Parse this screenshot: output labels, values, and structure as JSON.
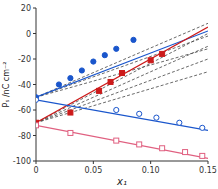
{
  "chart_data": {
    "type": "scatter",
    "xlabel": "x₁",
    "ylabel": "Pₛ /nC cm⁻²",
    "xlim": [
      0,
      0.15
    ],
    "ylim": [
      -100,
      20
    ],
    "xticks": [
      0,
      0.05,
      {
        "value": 0.1,
        "label": "0.10"
      },
      0.15
    ],
    "yticks": [
      20,
      0,
      -20,
      -40,
      -60,
      -80,
      -100
    ],
    "grid": false,
    "series": [
      {
        "type": "line",
        "line_style": "dashed",
        "color": "#444444",
        "x": [
          0.0,
          0.15
        ],
        "values": [
          -50,
          -12
        ]
      },
      {
        "type": "line",
        "line_style": "dashed",
        "color": "#444444",
        "x": [
          0.0,
          0.15
        ],
        "values": [
          -50,
          -2
        ]
      },
      {
        "type": "line",
        "line_style": "dashed",
        "color": "#444444",
        "x": [
          0.0,
          0.15
        ],
        "values": [
          -50,
          8
        ]
      },
      {
        "type": "line",
        "line_style": "dashed",
        "color": "#444444",
        "x": [
          0.0,
          0.15
        ],
        "values": [
          -70,
          -30
        ]
      },
      {
        "type": "line",
        "line_style": "dashed",
        "color": "#444444",
        "x": [
          0.0,
          0.15
        ],
        "values": [
          -70,
          -20
        ]
      },
      {
        "type": "line",
        "line_style": "dashed",
        "color": "#444444",
        "x": [
          0.0,
          0.15
        ],
        "values": [
          -70,
          -10
        ]
      },
      {
        "type": "line",
        "line_style": "dashed",
        "color": "#444444",
        "x": [
          0.0,
          0.15
        ],
        "values": [
          -70,
          0
        ]
      },
      {
        "type": "line",
        "line_style": "solid",
        "color": "#1a56cc",
        "x": [
          0.0,
          0.15
        ],
        "values": [
          -50,
          2
        ]
      },
      {
        "type": "line",
        "line_style": "solid",
        "color": "#cc1a1a",
        "x": [
          0.0,
          0.15
        ],
        "values": [
          -70,
          5
        ]
      },
      {
        "type": "line",
        "line_style": "solid",
        "color": "#1a56cc",
        "x": [
          0.0,
          0.15
        ],
        "values": [
          -52,
          -76
        ]
      },
      {
        "type": "line",
        "line_style": "solid",
        "color": "#e06080",
        "x": [
          0.0,
          0.15
        ],
        "values": [
          -72,
          -98
        ]
      },
      {
        "type": "scatter",
        "marker": "circle",
        "color": "#1a56cc",
        "x": [
          0.0,
          0.02,
          0.03,
          0.04,
          0.05,
          0.06,
          0.07,
          0.085
        ],
        "values": [
          -50,
          -40,
          -35,
          -29,
          -22,
          -17,
          -12,
          -5
        ]
      },
      {
        "type": "scatter",
        "marker": "square",
        "color": "#cc1a1a",
        "x": [
          0.0,
          0.03,
          0.055,
          0.065,
          0.075,
          0.1,
          0.11
        ],
        "values": [
          -70,
          -62,
          -45,
          -38,
          -31,
          -21,
          -16
        ]
      },
      {
        "type": "scatter",
        "marker": "circle-open",
        "color": "#1a56cc",
        "x": [
          0.0,
          0.07,
          0.09,
          0.105,
          0.125,
          0.145
        ],
        "values": [
          -52,
          -60,
          -63,
          -66,
          -70,
          -74
        ]
      },
      {
        "type": "scatter",
        "marker": "square-open",
        "color": "#e06080",
        "x": [
          0.0,
          0.03,
          0.07,
          0.09,
          0.11,
          0.13,
          0.145
        ],
        "values": [
          -72,
          -78,
          -84,
          -87,
          -90,
          -93,
          -96
        ]
      }
    ]
  }
}
